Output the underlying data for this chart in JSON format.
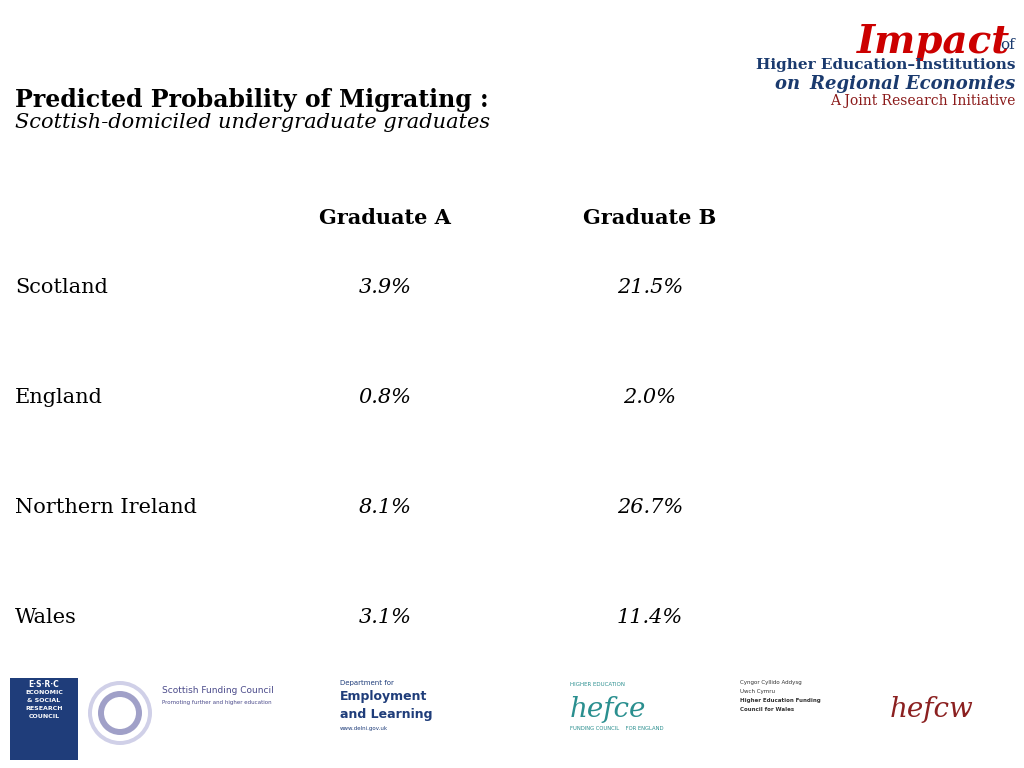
{
  "title_line1": "Predicted Probability of Migrating :",
  "title_line2": "Scottish-domiciled undergraduate graduates",
  "col_headers": [
    "Graduate A",
    "Graduate B"
  ],
  "rows": [
    {
      "label": "Scotland",
      "grad_a": "3.9%",
      "grad_b": "21.5%"
    },
    {
      "label": "England",
      "grad_a": "0.8%",
      "grad_b": "2.0%"
    },
    {
      "label": "Northern Ireland",
      "grad_a": "8.1%",
      "grad_b": "26.7%"
    },
    {
      "label": "Wales",
      "grad_a": "3.1%",
      "grad_b": "11.4%"
    }
  ],
  "bg_color": "#ffffff",
  "title_color": "#000000",
  "header_color": "#000000",
  "label_color": "#000000",
  "value_color": "#000000",
  "impact_red": "#cc0000",
  "impact_blue": "#1a3a6e",
  "impact_dark_red": "#8b1a1a",
  "teal_color": "#2a8f8f",
  "esrc_blue": "#1f3d7a",
  "sfc_blue": "#4a4a8a",
  "del_blue": "#1f3d7a",
  "cyngor_dark": "#333333",
  "hefcw_red": "#8b2020"
}
